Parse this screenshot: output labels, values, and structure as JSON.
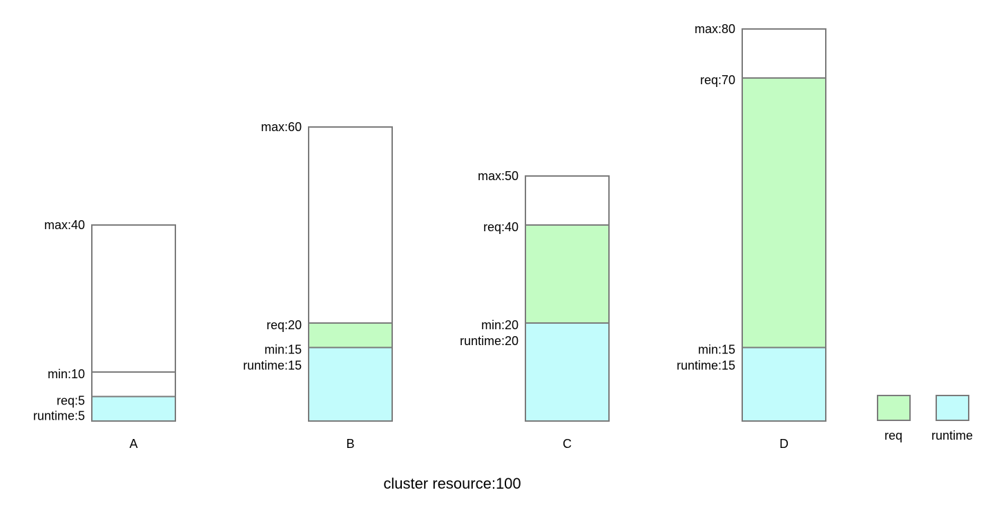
{
  "caption": "cluster resource:100",
  "colors": {
    "req": "#c3fcc3",
    "runtime": "#c2fcfc",
    "border": "#7a7a7a"
  },
  "legend": {
    "req_label": "req",
    "runtime_label": "runtime"
  },
  "chart_data": {
    "type": "bar",
    "title": "",
    "caption": "cluster resource:100",
    "categories": [
      "A",
      "B",
      "C",
      "D"
    ],
    "queues": [
      {
        "name": "A",
        "max": 40,
        "min": 10,
        "req": 5,
        "runtime": 5,
        "labels": {
          "max": "max:40",
          "min": "min:10",
          "req": "req:5",
          "runtime": "runtime:5"
        }
      },
      {
        "name": "B",
        "max": 60,
        "min": 15,
        "req": 20,
        "runtime": 15,
        "labels": {
          "max": "max:60",
          "req": "req:20",
          "min": "min:15",
          "runtime": "runtime:15"
        }
      },
      {
        "name": "C",
        "max": 50,
        "min": 20,
        "req": 40,
        "runtime": 20,
        "labels": {
          "max": "max:50",
          "req": "req:40",
          "min": "min:20",
          "runtime": "runtime:20"
        }
      },
      {
        "name": "D",
        "max": 80,
        "min": 15,
        "req": 70,
        "runtime": 15,
        "labels": {
          "max": "max:80",
          "req": "req:70",
          "min": "min:15",
          "runtime": "runtime:15"
        }
      }
    ]
  }
}
